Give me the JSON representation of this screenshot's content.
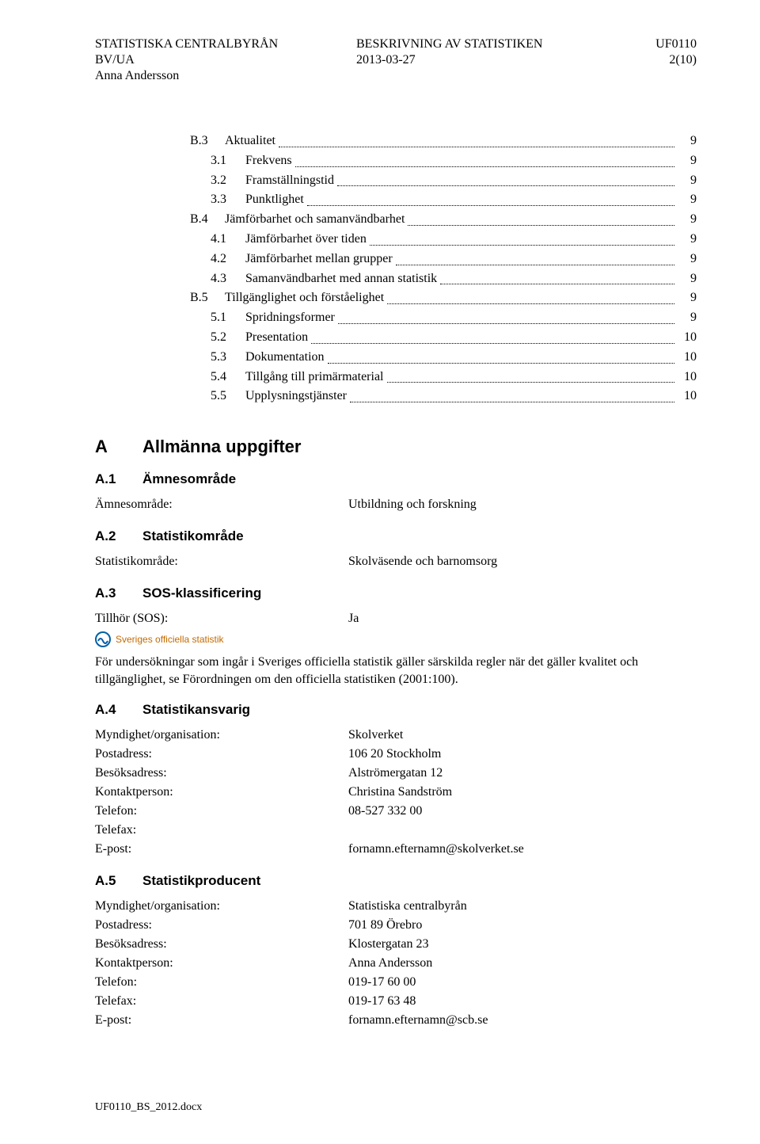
{
  "header": {
    "org": "STATISTISKA CENTRALBYRÅN",
    "dept": "BV/UA",
    "author": "Anna Andersson",
    "doc_type1": "BESKRIVNING AV STATISTIKEN",
    "date": "2013-03-27",
    "doc_code": "UF0110",
    "page": "2(10)"
  },
  "toc": [
    {
      "level": 1,
      "num": "B.3",
      "label": "Aktualitet",
      "page": "9"
    },
    {
      "level": 2,
      "num": "3.1",
      "label": "Frekvens",
      "page": "9"
    },
    {
      "level": 2,
      "num": "3.2",
      "label": "Framställningstid",
      "page": "9"
    },
    {
      "level": 2,
      "num": "3.3",
      "label": "Punktlighet",
      "page": "9"
    },
    {
      "level": 1,
      "num": "B.4",
      "label": "Jämförbarhet och samanvändbarhet",
      "page": "9"
    },
    {
      "level": 2,
      "num": "4.1",
      "label": "Jämförbarhet över tiden",
      "page": "9"
    },
    {
      "level": 2,
      "num": "4.2",
      "label": "Jämförbarhet mellan grupper",
      "page": "9"
    },
    {
      "level": 2,
      "num": "4.3",
      "label": "Samanvändbarhet med annan statistik",
      "page": "9"
    },
    {
      "level": 1,
      "num": "B.5",
      "label": "Tillgänglighet och förståelighet",
      "page": "9"
    },
    {
      "level": 2,
      "num": "5.1",
      "label": "Spridningsformer",
      "page": "9"
    },
    {
      "level": 2,
      "num": "5.2",
      "label": "Presentation",
      "page": "10"
    },
    {
      "level": 2,
      "num": "5.3",
      "label": "Dokumentation",
      "page": "10"
    },
    {
      "level": 2,
      "num": "5.4",
      "label": "Tillgång till primärmaterial",
      "page": "10"
    },
    {
      "level": 2,
      "num": "5.5",
      "label": "Upplysningstjänster",
      "page": "10"
    }
  ],
  "sectionA": {
    "letter": "A",
    "title": "Allmänna uppgifter"
  },
  "a1": {
    "num": "A.1",
    "title": "Ämnesområde",
    "label": "Ämnesområde:",
    "value": "Utbildning och forskning"
  },
  "a2": {
    "num": "A.2",
    "title": "Statistikområde",
    "label": "Statistikområde:",
    "value": "Skolväsende och barnomsorg"
  },
  "a3": {
    "num": "A.3",
    "title": "SOS-klassificering",
    "label": "Tillhör (SOS):",
    "value": "Ja",
    "sos_logo_text": "Sveriges officiella statistik",
    "para": "För undersökningar som ingår i Sveriges officiella statistik gäller särskilda regler när det gäller kvalitet och tillgänglighet, se Förordningen om den officiella statistiken (2001:100)."
  },
  "a4": {
    "num": "A.4",
    "title": "Statistikansvarig",
    "rows": [
      {
        "label": "Myndighet/organisation:",
        "value": "Skolverket"
      },
      {
        "label": "Postadress:",
        "value": "106 20 Stockholm"
      },
      {
        "label": "Besöksadress:",
        "value": "Alströmergatan 12"
      },
      {
        "label": "Kontaktperson:",
        "value": "Christina Sandström"
      },
      {
        "label": "Telefon:",
        "value": "08-527 332 00"
      },
      {
        "label": "Telefax:",
        "value": ""
      },
      {
        "label": "E-post:",
        "value": "fornamn.efternamn@skolverket.se"
      }
    ]
  },
  "a5": {
    "num": "A.5",
    "title": "Statistikproducent",
    "rows": [
      {
        "label": "Myndighet/organisation:",
        "value": "Statistiska centralbyrån"
      },
      {
        "label": "Postadress:",
        "value": "701 89 Örebro"
      },
      {
        "label": "Besöksadress:",
        "value": "Klostergatan 23"
      },
      {
        "label": "Kontaktperson:",
        "value": "Anna Andersson"
      },
      {
        "label": "Telefon:",
        "value": "019-17 60 00"
      },
      {
        "label": "Telefax:",
        "value": "019-17 63 48"
      },
      {
        "label": "E-post:",
        "value": "fornamn.efternamn@scb.se"
      }
    ]
  },
  "footer": {
    "filename": "UF0110_BS_2012.docx"
  },
  "colors": {
    "text": "#000000",
    "sos_orange": "#c46a00",
    "sos_blue": "#0060a8",
    "background": "#ffffff"
  }
}
